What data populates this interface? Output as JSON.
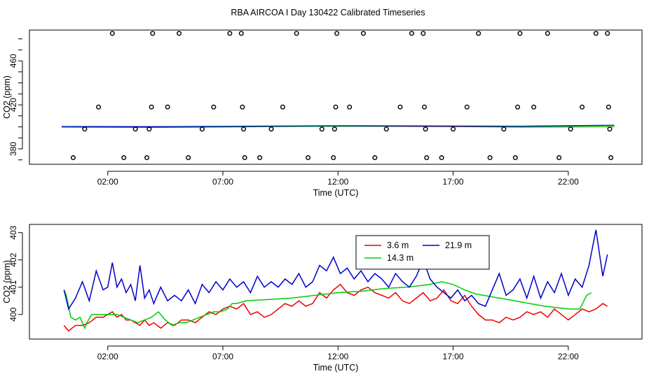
{
  "page_title": "RBA AIRCOA I  Day 130422  Calibrated Timeseries",
  "chart_data": [
    {
      "type": "scatter",
      "title": "",
      "xlabel": "Time (UTC)",
      "ylabel": "CO2 (ppm)",
      "xlim": [
        -1.4,
        25.2
      ],
      "ylim": [
        366,
        488
      ],
      "xticks": [
        2,
        7,
        12,
        17,
        22
      ],
      "xtick_labels": [
        "02:00",
        "07:00",
        "12:00",
        "17:00",
        "22:00"
      ],
      "yticks": [
        380,
        420,
        460
      ],
      "ytick_labels": [
        "380",
        "420",
        "460"
      ],
      "colors": {
        "3.6 m": "#ee0000",
        "14.3 m": "#00cc00",
        "21.9 m": "#0000cc",
        "points": "#000000"
      },
      "points": [
        {
          "x": 0.5,
          "y": 372
        },
        {
          "x": 1.0,
          "y": 398
        },
        {
          "x": 1.6,
          "y": 418
        },
        {
          "x": 2.2,
          "y": 485
        },
        {
          "x": 2.7,
          "y": 372
        },
        {
          "x": 3.2,
          "y": 398
        },
        {
          "x": 3.7,
          "y": 372
        },
        {
          "x": 3.8,
          "y": 398
        },
        {
          "x": 3.9,
          "y": 418
        },
        {
          "x": 3.95,
          "y": 485
        },
        {
          "x": 4.6,
          "y": 418
        },
        {
          "x": 5.1,
          "y": 485
        },
        {
          "x": 5.5,
          "y": 372
        },
        {
          "x": 6.1,
          "y": 398
        },
        {
          "x": 6.6,
          "y": 418
        },
        {
          "x": 7.3,
          "y": 485
        },
        {
          "x": 7.8,
          "y": 485
        },
        {
          "x": 7.85,
          "y": 418
        },
        {
          "x": 7.9,
          "y": 398
        },
        {
          "x": 7.95,
          "y": 372
        },
        {
          "x": 8.6,
          "y": 372
        },
        {
          "x": 9.1,
          "y": 398
        },
        {
          "x": 9.6,
          "y": 418
        },
        {
          "x": 10.2,
          "y": 485
        },
        {
          "x": 10.7,
          "y": 372
        },
        {
          "x": 11.3,
          "y": 398
        },
        {
          "x": 11.8,
          "y": 372
        },
        {
          "x": 11.85,
          "y": 398
        },
        {
          "x": 11.9,
          "y": 418
        },
        {
          "x": 11.95,
          "y": 485
        },
        {
          "x": 12.5,
          "y": 418
        },
        {
          "x": 13.1,
          "y": 485
        },
        {
          "x": 13.6,
          "y": 372
        },
        {
          "x": 14.1,
          "y": 398
        },
        {
          "x": 14.7,
          "y": 418
        },
        {
          "x": 15.2,
          "y": 485
        },
        {
          "x": 15.7,
          "y": 485
        },
        {
          "x": 15.75,
          "y": 418
        },
        {
          "x": 15.8,
          "y": 398
        },
        {
          "x": 15.85,
          "y": 372
        },
        {
          "x": 16.5,
          "y": 372
        },
        {
          "x": 17.0,
          "y": 398
        },
        {
          "x": 17.6,
          "y": 418
        },
        {
          "x": 18.1,
          "y": 485
        },
        {
          "x": 18.6,
          "y": 372
        },
        {
          "x": 19.2,
          "y": 398
        },
        {
          "x": 19.7,
          "y": 372
        },
        {
          "x": 19.8,
          "y": 418
        },
        {
          "x": 19.9,
          "y": 485
        },
        {
          "x": 20.5,
          "y": 418
        },
        {
          "x": 21.1,
          "y": 485
        },
        {
          "x": 21.6,
          "y": 372
        },
        {
          "x": 22.1,
          "y": 398
        },
        {
          "x": 22.6,
          "y": 418
        },
        {
          "x": 23.2,
          "y": 485
        },
        {
          "x": 23.7,
          "y": 485
        },
        {
          "x": 23.75,
          "y": 418
        },
        {
          "x": 23.8,
          "y": 398
        },
        {
          "x": 23.85,
          "y": 372
        }
      ],
      "series": [
        {
          "name": "3.6 m",
          "x": [
            0,
            4,
            8,
            12,
            16,
            20,
            24
          ],
          "values": [
            399.8,
            399.5,
            400.0,
            400.6,
            400.3,
            399.8,
            400.2
          ]
        },
        {
          "name": "14.3 m",
          "x": [
            0,
            4,
            8,
            12,
            16,
            20,
            24
          ],
          "values": [
            399.9,
            399.8,
            400.2,
            400.5,
            400.6,
            400.0,
            400.1
          ]
        },
        {
          "name": "21.9 m",
          "x": [
            0,
            4,
            8,
            12,
            16,
            20,
            24
          ],
          "values": [
            400.3,
            400.2,
            400.6,
            401.0,
            400.8,
            400.6,
            401.5
          ]
        }
      ]
    },
    {
      "type": "line",
      "title": "",
      "xlabel": "Time (UTC)",
      "ylabel": "CO2 (ppm)",
      "xlim": [
        -1.4,
        25.2
      ],
      "ylim": [
        399.1,
        403.3
      ],
      "xticks": [
        2,
        7,
        12,
        17,
        22
      ],
      "xtick_labels": [
        "02:00",
        "07:00",
        "12:00",
        "17:00",
        "22:00"
      ],
      "yticks": [
        400,
        401,
        402,
        403
      ],
      "ytick_labels": [
        "400",
        "401",
        "402",
        "403"
      ],
      "legend": {
        "position": "top-center",
        "entries": [
          "3.6 m",
          "21.9 m",
          "14.3 m"
        ]
      },
      "series": [
        {
          "name": "3.6 m",
          "color": "#ee0000",
          "x": [
            0.1,
            0.3,
            0.6,
            0.9,
            1.2,
            1.5,
            1.8,
            2.0,
            2.2,
            2.4,
            2.6,
            2.8,
            3.0,
            3.2,
            3.4,
            3.6,
            3.8,
            4.0,
            4.3,
            4.6,
            4.9,
            5.2,
            5.5,
            5.8,
            6.1,
            6.4,
            6.7,
            7.0,
            7.3,
            7.6,
            7.9,
            8.2,
            8.5,
            8.8,
            9.1,
            9.4,
            9.7,
            10.0,
            10.3,
            10.6,
            10.9,
            11.2,
            11.5,
            11.8,
            12.1,
            12.4,
            12.7,
            13.0,
            13.3,
            13.6,
            13.9,
            14.2,
            14.5,
            14.8,
            15.1,
            15.4,
            15.7,
            16.0,
            16.3,
            16.6,
            16.9,
            17.2,
            17.5,
            17.8,
            18.1,
            18.4,
            18.7,
            19.0,
            19.3,
            19.6,
            19.9,
            20.2,
            20.5,
            20.8,
            21.1,
            21.4,
            21.7,
            22.0,
            22.3,
            22.6,
            22.9,
            23.2,
            23.5,
            23.7
          ],
          "values": [
            399.6,
            399.4,
            399.6,
            399.6,
            399.7,
            399.9,
            399.9,
            400.0,
            400.1,
            399.9,
            400.0,
            399.8,
            399.8,
            399.7,
            399.6,
            399.8,
            399.6,
            399.7,
            399.5,
            399.7,
            399.6,
            399.8,
            399.8,
            399.7,
            399.9,
            400.1,
            400.0,
            400.2,
            400.3,
            400.2,
            400.4,
            400.0,
            400.1,
            399.9,
            400.0,
            400.2,
            400.4,
            400.3,
            400.5,
            400.3,
            400.4,
            400.8,
            400.6,
            400.9,
            401.1,
            400.8,
            400.7,
            400.9,
            401.0,
            400.8,
            400.7,
            400.6,
            400.8,
            400.5,
            400.4,
            400.6,
            400.8,
            400.5,
            400.6,
            400.9,
            400.5,
            400.4,
            400.7,
            400.3,
            400.0,
            399.8,
            399.8,
            399.7,
            399.9,
            399.8,
            399.9,
            400.1,
            400.0,
            400.1,
            399.9,
            400.2,
            400.0,
            399.8,
            400.0,
            400.2,
            400.1,
            400.2,
            400.4,
            400.3
          ]
        },
        {
          "name": "14.3 m",
          "color": "#00cc00",
          "x": [
            0.1,
            0.2,
            0.4,
            0.6,
            0.8,
            1.0,
            1.1,
            1.3,
            1.5,
            1.8,
            2.1,
            2.4,
            2.7,
            3.0,
            3.3,
            3.6,
            3.9,
            4.2,
            4.5,
            4.8,
            5.1,
            5.4,
            5.7,
            6.0,
            6.3,
            6.6,
            6.9,
            7.2,
            7.4,
            7.6,
            8.0,
            9.0,
            10.0,
            11.0,
            12.0,
            13.0,
            14.0,
            15.0,
            16.0,
            16.5,
            17.0,
            17.5,
            18.0,
            19.0,
            20.0,
            21.0,
            22.0,
            22.5,
            22.8,
            23.0
          ],
          "values": [
            400.9,
            400.7,
            399.9,
            399.8,
            399.9,
            399.5,
            399.7,
            400.0,
            400.0,
            400.0,
            400.0,
            400.0,
            399.9,
            399.8,
            399.7,
            399.8,
            399.9,
            400.1,
            399.8,
            399.6,
            399.7,
            399.7,
            399.8,
            399.9,
            400.0,
            400.1,
            400.1,
            400.2,
            400.4,
            400.4,
            400.5,
            400.55,
            400.6,
            400.7,
            400.8,
            400.85,
            400.95,
            401.0,
            401.1,
            401.2,
            401.1,
            400.9,
            400.75,
            400.6,
            400.45,
            400.3,
            400.2,
            400.2,
            400.7,
            400.8
          ]
        },
        {
          "name": "21.9 m",
          "color": "#0000cc",
          "x": [
            0.1,
            0.3,
            0.6,
            0.9,
            1.2,
            1.5,
            1.8,
            2.0,
            2.2,
            2.4,
            2.6,
            2.8,
            3.0,
            3.2,
            3.4,
            3.6,
            3.8,
            4.0,
            4.3,
            4.6,
            4.9,
            5.2,
            5.5,
            5.8,
            6.1,
            6.4,
            6.7,
            7.0,
            7.3,
            7.6,
            7.9,
            8.2,
            8.5,
            8.8,
            9.1,
            9.4,
            9.7,
            10.0,
            10.3,
            10.6,
            10.9,
            11.2,
            11.5,
            11.8,
            12.1,
            12.4,
            12.7,
            13.0,
            13.3,
            13.6,
            13.9,
            14.2,
            14.5,
            14.8,
            15.1,
            15.4,
            15.7,
            16.0,
            16.3,
            16.6,
            16.9,
            17.2,
            17.5,
            17.8,
            18.1,
            18.4,
            18.7,
            19.0,
            19.3,
            19.6,
            19.9,
            20.2,
            20.5,
            20.8,
            21.1,
            21.4,
            21.7,
            22.0,
            22.3,
            22.6,
            22.9,
            23.2,
            23.5,
            23.7
          ],
          "values": [
            400.9,
            400.2,
            400.6,
            401.2,
            400.5,
            401.6,
            400.9,
            401.0,
            401.9,
            401.0,
            401.3,
            400.8,
            401.1,
            400.5,
            401.8,
            400.6,
            400.9,
            400.4,
            401.0,
            400.5,
            400.7,
            400.5,
            400.9,
            400.4,
            401.1,
            400.8,
            401.2,
            400.9,
            401.3,
            401.0,
            401.2,
            400.8,
            401.4,
            401.0,
            401.2,
            401.0,
            401.3,
            401.1,
            401.5,
            401.0,
            401.2,
            401.8,
            401.6,
            402.1,
            401.5,
            401.7,
            401.3,
            401.6,
            401.2,
            401.5,
            401.3,
            401.0,
            401.5,
            401.2,
            401.0,
            401.4,
            402.0,
            401.3,
            401.0,
            400.8,
            400.6,
            400.9,
            400.5,
            400.7,
            400.4,
            400.3,
            400.9,
            401.5,
            400.7,
            400.9,
            401.3,
            400.6,
            401.4,
            400.6,
            401.2,
            400.8,
            401.5,
            400.7,
            401.3,
            401.0,
            401.8,
            403.1,
            401.4,
            402.2
          ]
        }
      ]
    }
  ]
}
